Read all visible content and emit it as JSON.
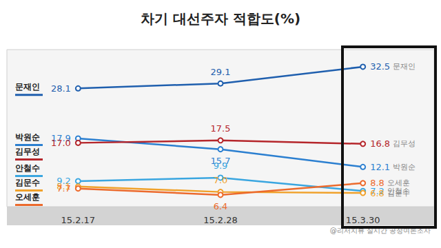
{
  "chart_data": {
    "type": "line",
    "title": "차기 대선주자 적합도(%)",
    "source": "@리서치뷰 실시간 공정여론조사",
    "categories": [
      "15.2.17",
      "15.2.28",
      "15.3.30"
    ],
    "series": [
      {
        "name": "문재인",
        "color": "#1f5fae",
        "values": [
          28.1,
          29.1,
          32.5
        ],
        "value_labels": [
          "28.1",
          "29.1",
          "32.5"
        ]
      },
      {
        "name": "박원순",
        "color": "#2b7fd0",
        "values": [
          17.9,
          15.7,
          12.1
        ],
        "value_labels": [
          "17.9",
          "15.7",
          "12.1"
        ]
      },
      {
        "name": "김무성",
        "color": "#b5262b",
        "values": [
          17.0,
          17.5,
          16.8
        ],
        "value_labels": [
          "17.0",
          "17.5",
          "16.8"
        ]
      },
      {
        "name": "안철수",
        "color": "#3aa6e0",
        "values": [
          9.2,
          9.9,
          7.2
        ],
        "value_labels": [
          "9.2",
          "9.9",
          "7.2"
        ]
      },
      {
        "name": "김문수",
        "color": "#f0a12a",
        "values": [
          8.1,
          7.0,
          6.8
        ],
        "value_labels": [
          "8.1",
          "7.0",
          "6.8"
        ]
      },
      {
        "name": "오세훈",
        "color": "#ec6a2c",
        "values": [
          7.7,
          6.4,
          8.8
        ],
        "value_labels": [
          "7.7",
          "6.4",
          "8.8"
        ]
      }
    ],
    "ylim": [
      4,
      36
    ],
    "grid": false,
    "tick_labels": "x",
    "data_labels": true,
    "marker": "emptyCircle",
    "line_style": "solid"
  }
}
